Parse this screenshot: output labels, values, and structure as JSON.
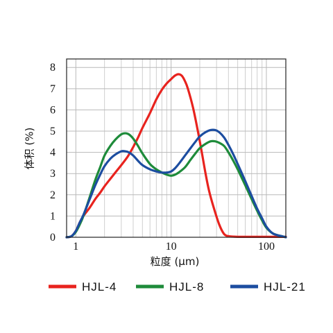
{
  "chart_data": {
    "type": "line",
    "xscale": "log",
    "xlim": [
      0.8,
      160
    ],
    "ylim": [
      0,
      8.4
    ],
    "grid": true,
    "legend_position": "bottom",
    "xlabel": "粒度 (μm)",
    "ylabel": "体积 (%)",
    "xticks": [
      {
        "value": 1,
        "label": "1"
      },
      {
        "value": 10,
        "label": "10"
      },
      {
        "value": 100,
        "label": "100"
      }
    ],
    "yticks": [
      {
        "value": 0,
        "label": "0"
      },
      {
        "value": 1,
        "label": "1"
      },
      {
        "value": 2,
        "label": "2"
      },
      {
        "value": 3,
        "label": "3"
      },
      {
        "value": 4,
        "label": "4"
      },
      {
        "value": 5,
        "label": "5"
      },
      {
        "value": 6,
        "label": "6"
      },
      {
        "value": 7,
        "label": "7"
      },
      {
        "value": 8,
        "label": "8"
      }
    ],
    "series": [
      {
        "name": "HJL-4",
        "color": "#e8231e",
        "x": [
          0.8,
          0.9,
          1.0,
          1.1,
          1.2,
          1.4,
          1.6,
          1.8,
          2.0,
          2.3,
          2.6,
          3.0,
          3.5,
          4.0,
          4.5,
          5.0,
          6.0,
          7.0,
          8.0,
          9.0,
          10.0,
          11.0,
          12.0,
          13.0,
          14.0,
          15.0,
          17.0,
          19.0,
          21.0,
          23.0,
          25.0,
          28.0,
          32.0,
          36.0,
          40.0,
          45.0,
          50.0,
          60.0,
          80.0,
          100.0,
          130.0,
          160.0
        ],
        "y": [
          0.0,
          0.05,
          0.3,
          0.7,
          1.0,
          1.4,
          1.8,
          2.1,
          2.4,
          2.75,
          3.05,
          3.4,
          3.8,
          4.25,
          4.7,
          5.15,
          5.85,
          6.5,
          6.95,
          7.25,
          7.45,
          7.62,
          7.68,
          7.6,
          7.35,
          7.0,
          6.1,
          5.05,
          4.0,
          3.0,
          2.2,
          1.4,
          0.6,
          0.15,
          0.05,
          0.03,
          0.02,
          0.02,
          0.02,
          0.02,
          0.02,
          0.02
        ]
      },
      {
        "name": "HJL-8",
        "color": "#1e8b3a",
        "x": [
          0.8,
          0.9,
          1.0,
          1.1,
          1.2,
          1.4,
          1.6,
          1.8,
          2.0,
          2.3,
          2.6,
          3.0,
          3.3,
          3.6,
          4.0,
          4.5,
          5.0,
          6.0,
          7.0,
          8.0,
          9.0,
          10.0,
          11.0,
          12.0,
          14.0,
          16.0,
          18.0,
          20.0,
          23.0,
          26.0,
          29.0,
          32.0,
          36.0,
          40.0,
          45.0,
          50.0,
          60.0,
          70.0,
          80.0,
          90.0,
          100.0,
          115.0,
          130.0,
          145.0,
          160.0
        ],
        "y": [
          0.0,
          0.05,
          0.25,
          0.6,
          1.0,
          1.9,
          2.7,
          3.3,
          3.85,
          4.3,
          4.6,
          4.85,
          4.9,
          4.85,
          4.65,
          4.3,
          3.95,
          3.45,
          3.2,
          3.05,
          2.95,
          2.9,
          2.95,
          3.05,
          3.3,
          3.65,
          3.95,
          4.2,
          4.4,
          4.52,
          4.52,
          4.45,
          4.3,
          4.0,
          3.6,
          3.2,
          2.45,
          1.8,
          1.25,
          0.8,
          0.45,
          0.2,
          0.1,
          0.05,
          0.0
        ]
      },
      {
        "name": "HJL-21",
        "color": "#1c4da0",
        "x": [
          0.8,
          0.9,
          1.0,
          1.1,
          1.2,
          1.4,
          1.6,
          1.8,
          2.0,
          2.3,
          2.6,
          3.0,
          3.3,
          3.6,
          4.0,
          4.5,
          5.0,
          6.0,
          7.0,
          8.0,
          9.0,
          10.0,
          11.0,
          12.0,
          14.0,
          16.0,
          18.0,
          20.0,
          23.0,
          26.0,
          29.0,
          32.0,
          36.0,
          40.0,
          45.0,
          50.0,
          60.0,
          70.0,
          80.0,
          90.0,
          100.0,
          115.0,
          130.0,
          145.0,
          160.0
        ],
        "y": [
          0.0,
          0.05,
          0.3,
          0.7,
          1.05,
          1.8,
          2.45,
          2.95,
          3.35,
          3.7,
          3.9,
          4.05,
          4.05,
          4.0,
          3.85,
          3.6,
          3.4,
          3.2,
          3.1,
          3.05,
          3.05,
          3.1,
          3.25,
          3.45,
          3.85,
          4.2,
          4.5,
          4.75,
          4.95,
          5.05,
          5.05,
          4.95,
          4.7,
          4.35,
          3.9,
          3.45,
          2.65,
          1.95,
          1.35,
          0.9,
          0.5,
          0.2,
          0.1,
          0.05,
          0.0
        ]
      }
    ]
  }
}
